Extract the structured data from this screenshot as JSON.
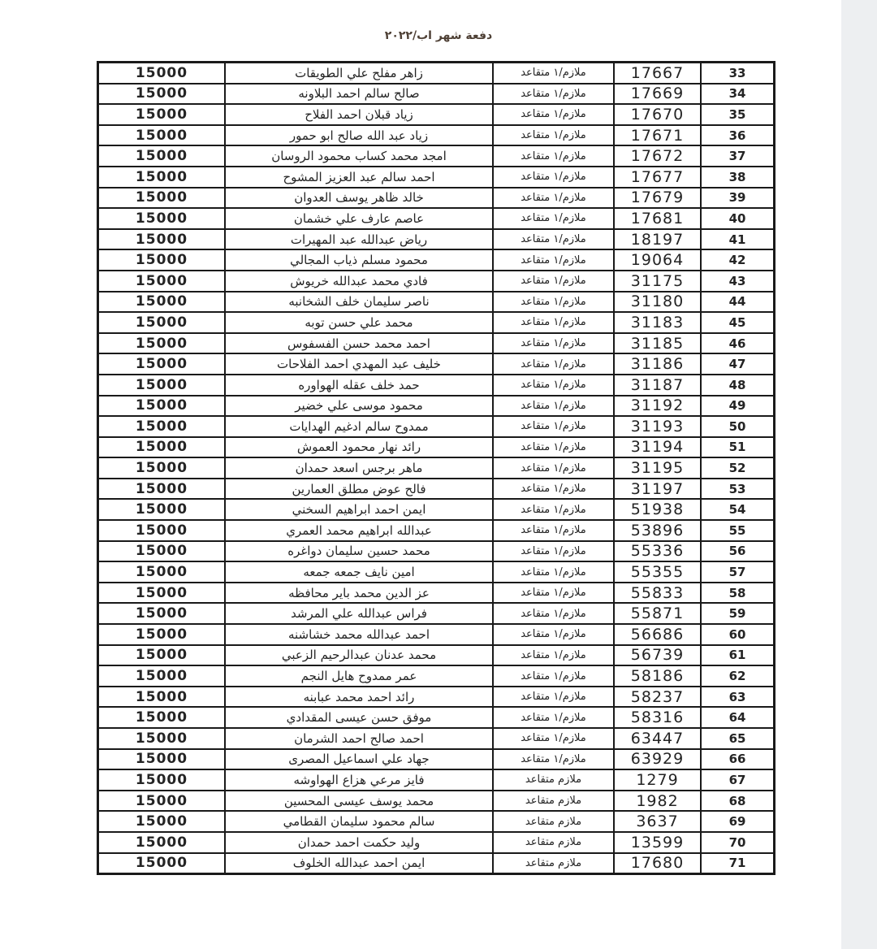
{
  "page": {
    "header_title": "دفعة شهر اب/٢٠٢٢"
  },
  "colors": {
    "page_background": "#ffffff",
    "edge_strip": "#edeff1",
    "table_border": "#1a1a1a",
    "header_text": "#4e4035"
  },
  "table": {
    "rows": [
      {
        "serial": "33",
        "id": "17667",
        "rank": "ملازم/١ متقاعد",
        "name": "زاهر مفلح علي الطويقات",
        "amount": "15000"
      },
      {
        "serial": "34",
        "id": "17669",
        "rank": "ملازم/١ متقاعد",
        "name": "صالح سالم احمد البلاونه",
        "amount": "15000"
      },
      {
        "serial": "35",
        "id": "17670",
        "rank": "ملازم/١ متقاعد",
        "name": "زياد قبلان احمد الفلاح",
        "amount": "15000"
      },
      {
        "serial": "36",
        "id": "17671",
        "rank": "ملازم/١ متقاعد",
        "name": "زياد عبد الله صالح ابو حمور",
        "amount": "15000"
      },
      {
        "serial": "37",
        "id": "17672",
        "rank": "ملازم/١ متقاعد",
        "name": "امجد محمد كساب محمود الروسان",
        "amount": "15000"
      },
      {
        "serial": "38",
        "id": "17677",
        "rank": "ملازم/١ متقاعد",
        "name": "احمد سالم عبد العزيز المشوح",
        "amount": "15000"
      },
      {
        "serial": "39",
        "id": "17679",
        "rank": "ملازم/١ متقاعد",
        "name": "خالد ظاهر يوسف العدوان",
        "amount": "15000"
      },
      {
        "serial": "40",
        "id": "17681",
        "rank": "ملازم/١ متقاعد",
        "name": "عاصم عارف علي خشمان",
        "amount": "15000"
      },
      {
        "serial": "41",
        "id": "18197",
        "rank": "ملازم/١ متقاعد",
        "name": "رياض عبدالله عبد المهيرات",
        "amount": "15000"
      },
      {
        "serial": "42",
        "id": "19064",
        "rank": "ملازم/١ متقاعد",
        "name": "محمود مسلم ذياب المجالي",
        "amount": "15000"
      },
      {
        "serial": "43",
        "id": "31175",
        "rank": "ملازم/١ متقاعد",
        "name": "فادي محمد عبدالله خريوش",
        "amount": "15000"
      },
      {
        "serial": "44",
        "id": "31180",
        "rank": "ملازم/١ متقاعد",
        "name": "ناصر سليمان خلف الشخانبه",
        "amount": "15000"
      },
      {
        "serial": "45",
        "id": "31183",
        "rank": "ملازم/١ متقاعد",
        "name": "محمد علي حسن توبه",
        "amount": "15000"
      },
      {
        "serial": "46",
        "id": "31185",
        "rank": "ملازم/١ متقاعد",
        "name": "احمد محمد حسن الفسفوس",
        "amount": "15000"
      },
      {
        "serial": "47",
        "id": "31186",
        "rank": "ملازم/١ متقاعد",
        "name": "خليف عبد المهدي احمد الفلاحات",
        "amount": "15000"
      },
      {
        "serial": "48",
        "id": "31187",
        "rank": "ملازم/١ متقاعد",
        "name": "حمد خلف عقله الهواوره",
        "amount": "15000"
      },
      {
        "serial": "49",
        "id": "31192",
        "rank": "ملازم/١ متقاعد",
        "name": "محمود موسى علي خضير",
        "amount": "15000"
      },
      {
        "serial": "50",
        "id": "31193",
        "rank": "ملازم/١ متقاعد",
        "name": "ممدوح سالم ادغيم الهدايات",
        "amount": "15000"
      },
      {
        "serial": "51",
        "id": "31194",
        "rank": "ملازم/١ متقاعد",
        "name": "رائد نهار محمود العموش",
        "amount": "15000"
      },
      {
        "serial": "52",
        "id": "31195",
        "rank": "ملازم/١ متقاعد",
        "name": "ماهر برجس اسعد حمدان",
        "amount": "15000"
      },
      {
        "serial": "53",
        "id": "31197",
        "rank": "ملازم/١ متقاعد",
        "name": "فالح عوض مطلق العمارين",
        "amount": "15000"
      },
      {
        "serial": "54",
        "id": "51938",
        "rank": "ملازم/١ متقاعد",
        "name": "ايمن احمد ابراهيم السخني",
        "amount": "15000"
      },
      {
        "serial": "55",
        "id": "53896",
        "rank": "ملازم/١ متقاعد",
        "name": "عبدالله ابراهيم محمد العمري",
        "amount": "15000"
      },
      {
        "serial": "56",
        "id": "55336",
        "rank": "ملازم/١ متقاعد",
        "name": "محمد حسين سليمان دواغره",
        "amount": "15000"
      },
      {
        "serial": "57",
        "id": "55355",
        "rank": "ملازم/١ متقاعد",
        "name": "امين نايف جمعه جمعه",
        "amount": "15000"
      },
      {
        "serial": "58",
        "id": "55833",
        "rank": "ملازم/١ متقاعد",
        "name": "عز الدين محمد باير محافظه",
        "amount": "15000"
      },
      {
        "serial": "59",
        "id": "55871",
        "rank": "ملازم/١ متقاعد",
        "name": "فراس عبدالله علي المرشد",
        "amount": "15000"
      },
      {
        "serial": "60",
        "id": "56686",
        "rank": "ملازم/١ متقاعد",
        "name": "احمد عبدالله محمد خشاشنه",
        "amount": "15000"
      },
      {
        "serial": "61",
        "id": "56739",
        "rank": "ملازم/١ متقاعد",
        "name": "محمد عدنان عبدالرحيم الزعبي",
        "amount": "15000"
      },
      {
        "serial": "62",
        "id": "58186",
        "rank": "ملازم/١ متقاعد",
        "name": "عمر ممدوح هايل النجم",
        "amount": "15000"
      },
      {
        "serial": "63",
        "id": "58237",
        "rank": "ملازم/١ متقاعد",
        "name": "رائد احمد محمد عبابنه",
        "amount": "15000"
      },
      {
        "serial": "64",
        "id": "58316",
        "rank": "ملازم/١ متقاعد",
        "name": "موفق حسن عيسى المقدادي",
        "amount": "15000"
      },
      {
        "serial": "65",
        "id": "63447",
        "rank": "ملازم/١ متقاعد",
        "name": "احمد صالح احمد الشرمان",
        "amount": "15000"
      },
      {
        "serial": "66",
        "id": "63929",
        "rank": "ملازم/١ متقاعد",
        "name": "جهاد علي اسماعيل المصرى",
        "amount": "15000"
      },
      {
        "serial": "67",
        "id": "1279",
        "rank": "ملازم متقاعد",
        "name": "فايز مرعي هزاع الهواوشه",
        "amount": "15000"
      },
      {
        "serial": "68",
        "id": "1982",
        "rank": "ملازم متقاعد",
        "name": "محمد يوسف عيسى المحسين",
        "amount": "15000"
      },
      {
        "serial": "69",
        "id": "3637",
        "rank": "ملازم متقاعد",
        "name": "سالم محمود سليمان القطامي",
        "amount": "15000"
      },
      {
        "serial": "70",
        "id": "13599",
        "rank": "ملازم متقاعد",
        "name": "وليد حكمت احمد حمدان",
        "amount": "15000"
      },
      {
        "serial": "71",
        "id": "17680",
        "rank": "ملازم متقاعد",
        "name": "ايمن احمد عبدالله الخلوف",
        "amount": "15000"
      }
    ]
  }
}
